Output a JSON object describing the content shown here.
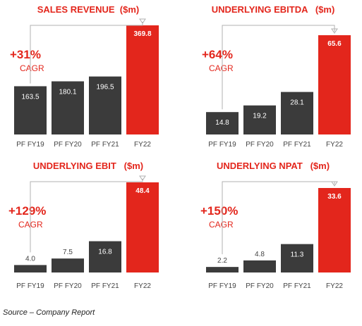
{
  "colors": {
    "dark_bar": "#3b3b3b",
    "highlight_bar": "#e3261c",
    "title": "#e3261c",
    "connector": "#b0b0b0"
  },
  "source": "Source – Company Report",
  "chart_data": [
    {
      "type": "bar",
      "title": "SALES REVENUE  ($m)",
      "categories": [
        "PF FY19",
        "PF FY20",
        "PF FY21",
        "FY22"
      ],
      "values": [
        163.5,
        180.1,
        196.5,
        369.8
      ],
      "value_labels": [
        "163.5",
        "180.1",
        "196.5",
        "369.8"
      ],
      "highlight_index": 3,
      "annotation": {
        "value": "+31%",
        "label": "CAGR"
      },
      "ylim": [
        0,
        369.8
      ]
    },
    {
      "type": "bar",
      "title": "UNDERLYING EBITDA   ($m)",
      "categories": [
        "PF FY19",
        "PF FY20",
        "PF FY21",
        "FY22"
      ],
      "values": [
        14.8,
        19.2,
        28.1,
        65.6
      ],
      "value_labels": [
        "14.8",
        "19.2",
        "28.1",
        "65.6"
      ],
      "highlight_index": 3,
      "annotation": {
        "value": "+64%",
        "label": "CAGR"
      },
      "ylim": [
        0,
        65.6
      ]
    },
    {
      "type": "bar",
      "title": "UNDERLYING EBIT   ($m)",
      "categories": [
        "PF FY19",
        "PF FY20",
        "PF FY21",
        "FY22"
      ],
      "values": [
        4.0,
        7.5,
        16.8,
        48.4
      ],
      "value_labels": [
        "4.0",
        "7.5",
        "16.8",
        "48.4"
      ],
      "highlight_index": 3,
      "annotation": {
        "value": "+129%",
        "label": "CAGR"
      },
      "ylim": [
        0,
        48.4
      ]
    },
    {
      "type": "bar",
      "title": "UNDERLYING NPAT   ($m)",
      "categories": [
        "PF FY19",
        "PF FY20",
        "PF FY21",
        "FY22"
      ],
      "values": [
        2.2,
        4.8,
        11.3,
        33.6
      ],
      "value_labels": [
        "2.2",
        "4.8",
        "11.3",
        "33.6"
      ],
      "highlight_index": 3,
      "annotation": {
        "value": "+150%",
        "label": "CAGR"
      },
      "ylim": [
        0,
        33.6
      ]
    }
  ]
}
